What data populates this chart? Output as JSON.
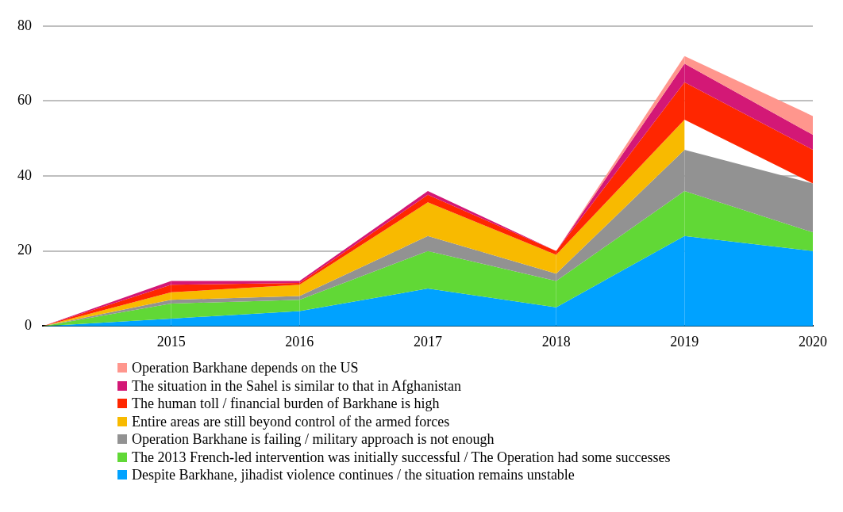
{
  "chart_data": {
    "type": "area",
    "stacked": true,
    "categories": [
      null,
      "2015",
      "2016",
      "2017",
      "2018",
      "2019",
      "2020"
    ],
    "series": [
      {
        "name": "Despite Barkhane, jihadist violence continues / the situation remains unstable",
        "color": "#00a2ff",
        "values": [
          0,
          2,
          4,
          10,
          5,
          24,
          20
        ]
      },
      {
        "name": "The 2013 French-led intervention was initially successful / The Operation had  some successes",
        "color": "#61d836",
        "values": [
          0,
          4,
          3,
          10,
          7,
          12,
          5
        ]
      },
      {
        "name": "Operation Barkhane is failing / military approach is not enough",
        "color": "#929292",
        "values": [
          0,
          1,
          1,
          4,
          2,
          11,
          13
        ]
      },
      {
        "name": "Entire areas are still beyond control of the armed forces",
        "color": "#f8ba00",
        "values": [
          0,
          2,
          3,
          9,
          5,
          8,
          null
        ]
      },
      {
        "name": "The human toll / financial burden of Barkhane is high",
        "color": "#ff2600",
        "values": [
          0,
          2,
          0.5,
          2,
          1,
          10,
          9
        ]
      },
      {
        "name": "The situation in the Sahel is similar to that in Afghanistan",
        "color": "#d31876",
        "values": [
          0,
          1,
          0.5,
          1,
          0,
          5,
          4
        ]
      },
      {
        "name": "Operation Barkhane depends on the US",
        "color": "#ff968d",
        "values": [
          null,
          null,
          null,
          null,
          0,
          2,
          5
        ]
      }
    ],
    "ylim": [
      0,
      80
    ],
    "yticks": [
      0,
      20,
      40,
      60,
      80
    ],
    "grid": "y",
    "legend": "bottom"
  }
}
